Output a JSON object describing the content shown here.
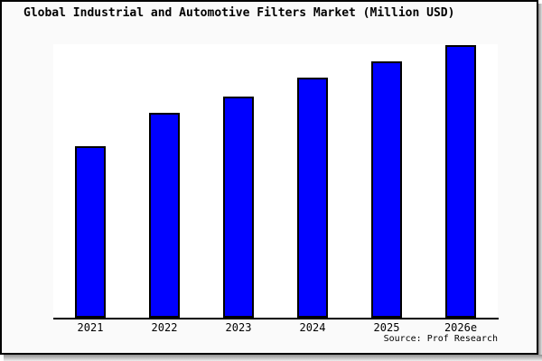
{
  "title": "Global Industrial and Automotive Filters Market (Million USD)",
  "source_credit": "Source: Prof Research",
  "colors": {
    "bar_fill": "#0000ff",
    "bar_border": "#000000",
    "canvas_background": "#fafafa",
    "plot_background": "#ffffff",
    "axis": "#000000",
    "frame_border": "#000000",
    "shadow": "#8f8f8f",
    "text": "#000000"
  },
  "chart_data": {
    "type": "bar",
    "title": "Global Industrial and Automotive Filters Market (Million USD)",
    "categories": [
      "2021",
      "2022",
      "2023",
      "2024",
      "2025",
      "2026e"
    ],
    "values": [
      63,
      75,
      81,
      88,
      94,
      100
    ],
    "series_note": "values are relative heights (no y-axis scale or data labels shown in image)",
    "xlabel": "",
    "ylabel": "",
    "ylim": [
      0,
      100
    ],
    "grid": false,
    "legend_position": "none",
    "source": "Source: Prof Research"
  }
}
